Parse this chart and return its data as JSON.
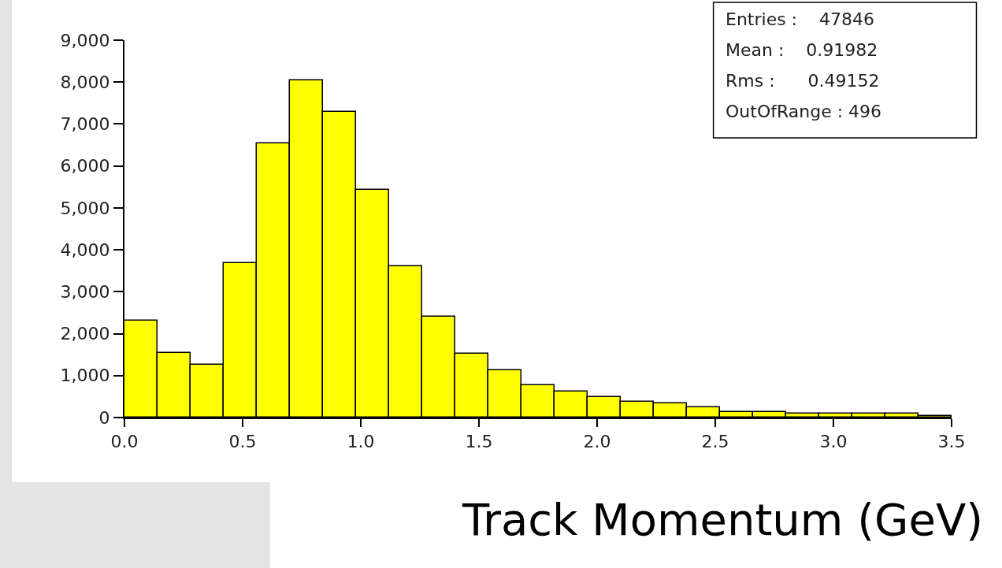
{
  "chart_data": {
    "type": "histogram",
    "xlabel": "Track Momentum (GeV)",
    "bins": [
      0,
      0.14,
      0.28,
      0.42,
      0.56,
      0.7,
      0.84,
      0.98,
      1.12,
      1.26,
      1.4,
      1.54,
      1.68,
      1.82,
      1.96,
      2.1,
      2.24,
      2.38,
      2.52,
      2.66,
      2.8,
      2.94,
      3.08,
      3.22,
      3.36,
      3.5
    ],
    "values": [
      2310,
      1550,
      1260,
      3680,
      6530,
      8040,
      7290,
      5430,
      3610,
      2410,
      1520,
      1130,
      770,
      620,
      490,
      380,
      340,
      240,
      140,
      140,
      90,
      90,
      90,
      90,
      40
    ],
    "color": "#ffff00",
    "xlim": [
      0,
      3.5
    ],
    "xticks": [
      {
        "value": 0,
        "label": "0.0"
      },
      0.5,
      {
        "value": 1,
        "label": "1.0"
      },
      1.5,
      {
        "value": 2,
        "label": "2.0"
      },
      2.5,
      {
        "value": 3,
        "label": "3.0"
      },
      3.5
    ],
    "ylim": [
      0,
      9000
    ],
    "yticks": [
      0,
      {
        "value": 1000,
        "label": "1,000"
      },
      {
        "value": 2000,
        "label": "2,000"
      },
      {
        "value": 3000,
        "label": "3,000"
      },
      {
        "value": 4000,
        "label": "4,000"
      },
      {
        "value": 5000,
        "label": "5,000"
      },
      {
        "value": 6000,
        "label": "6,000"
      },
      {
        "value": 7000,
        "label": "7,000"
      },
      {
        "value": 8000,
        "label": "8,000"
      },
      {
        "value": 9000,
        "label": "9,000"
      }
    ],
    "annotations": [
      "Entries :    47846",
      "Mean :    0.91982",
      "Rms :      0.49152",
      "OutOfRange : 496"
    ]
  }
}
